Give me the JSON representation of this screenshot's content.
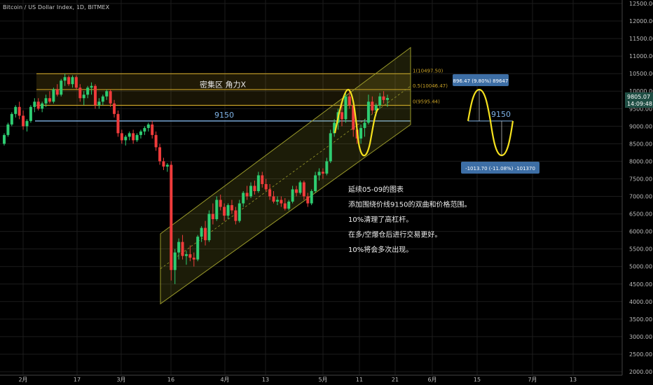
{
  "header": {
    "symbol": "Bitcoin / US Dollar Index, 1D, BITMEX"
  },
  "price_badge": {
    "price": "9805.07",
    "countdown": "14:09:48"
  },
  "zone": {
    "label": "密集区 角力X",
    "fib_top": "1(10497.50)",
    "fib_mid": "0.5(10046.47)",
    "fib_low": "0(9595.44)"
  },
  "support_label": "9150",
  "projection": {
    "label": "9150",
    "up_box": "896.47 (9.80%) 89647",
    "down_box": "-1013.70 (-11.08%) -101370"
  },
  "notes": [
    "延续05-09的图表",
    "添加围绕价线9150的双曲和价格范围。",
    "10%清理了高杠杆。",
    "在多/空爆仓后进行交易更好。",
    "10%将会多次出现。"
  ],
  "colors": {
    "up": "#26a69a",
    "up_bright": "#2ecc71",
    "down": "#ef3b3b",
    "zone": "#c9a227",
    "channel": "#9a9a2a",
    "support": "#7fb3e6",
    "wave": "#f5e11e",
    "box": "#3d6ea5",
    "grid": "#1c1c1c"
  },
  "chart_data": {
    "type": "candlestick",
    "y_axis": {
      "ylim": [
        1900,
        12600
      ],
      "ticks": [
        "12500.00",
        "12000.00",
        "11500.00",
        "11000.00",
        "10500.00",
        "10000.00",
        "9500.00",
        "9000.00",
        "8500.00",
        "8000.00",
        "7500.00",
        "7000.00",
        "6500.00",
        "6000.00",
        "5500.00",
        "5000.00",
        "4500.00",
        "4000.00",
        "3500.00",
        "3000.00",
        "2500.00",
        "2000.00"
      ]
    },
    "x_axis": {
      "ticks": [
        "2月",
        "17",
        "3月",
        "16",
        "4月",
        "13",
        "5月",
        "11",
        "21",
        "6月",
        "15",
        "7月",
        "13"
      ]
    },
    "levels": [
      {
        "name": "fib_1",
        "value": 10497.5
      },
      {
        "name": "fib_0.5",
        "value": 10046.47
      },
      {
        "name": "fib_0",
        "value": 9595.44
      },
      {
        "name": "support",
        "value": 9150
      }
    ],
    "ohlc": [
      [
        8500,
        8800,
        8450,
        8750
      ],
      [
        8750,
        9100,
        8700,
        9050
      ],
      [
        9050,
        9400,
        9000,
        9350
      ],
      [
        9350,
        9600,
        9250,
        9550
      ],
      [
        9550,
        9700,
        9200,
        9300
      ],
      [
        9300,
        9450,
        8900,
        9000
      ],
      [
        9000,
        9200,
        8850,
        9150
      ],
      [
        9150,
        9600,
        9100,
        9550
      ],
      [
        9550,
        9800,
        9400,
        9700
      ],
      [
        9700,
        9800,
        9450,
        9500
      ],
      [
        9500,
        9700,
        9400,
        9650
      ],
      [
        9650,
        9900,
        9550,
        9800
      ],
      [
        9800,
        10000,
        9650,
        9700
      ],
      [
        9700,
        10100,
        9650,
        10050
      ],
      [
        10050,
        10200,
        9850,
        9900
      ],
      [
        9900,
        10350,
        9850,
        10300
      ],
      [
        10300,
        10500,
        10150,
        10400
      ],
      [
        10400,
        10450,
        10150,
        10200
      ],
      [
        10200,
        10450,
        10100,
        10400
      ],
      [
        10400,
        10450,
        10050,
        10100
      ],
      [
        10100,
        10200,
        9700,
        9800
      ],
      [
        9800,
        10000,
        9600,
        9900
      ],
      [
        9900,
        10150,
        9800,
        10100
      ],
      [
        10100,
        10250,
        9900,
        10150
      ],
      [
        10150,
        10200,
        9500,
        9600
      ],
      [
        9600,
        9800,
        9500,
        9700
      ],
      [
        9700,
        9900,
        9600,
        9850
      ],
      [
        9850,
        10050,
        9750,
        10000
      ],
      [
        10000,
        10050,
        9550,
        9650
      ],
      [
        9650,
        9750,
        9250,
        9350
      ],
      [
        9350,
        9450,
        8700,
        8800
      ],
      [
        8800,
        8900,
        8500,
        8600
      ],
      [
        8600,
        8750,
        8450,
        8700
      ],
      [
        8700,
        8850,
        8600,
        8800
      ],
      [
        8800,
        8900,
        8500,
        8600
      ],
      [
        8600,
        8800,
        8550,
        8750
      ],
      [
        8750,
        8900,
        8650,
        8850
      ],
      [
        8850,
        9000,
        8750,
        8950
      ],
      [
        8950,
        9100,
        8850,
        9050
      ],
      [
        9050,
        9150,
        8650,
        8750
      ],
      [
        8750,
        8850,
        8300,
        8400
      ],
      [
        8400,
        8500,
        7900,
        8000
      ],
      [
        8000,
        8100,
        7750,
        7850
      ],
      [
        7850,
        7950,
        7700,
        7900
      ],
      [
        7900,
        8000,
        4600,
        4900
      ],
      [
        4900,
        5500,
        4500,
        5400
      ],
      [
        5400,
        5800,
        5200,
        5700
      ],
      [
        5700,
        5900,
        5200,
        5300
      ],
      [
        5300,
        5450,
        5050,
        5350
      ],
      [
        5350,
        5600,
        5150,
        5250
      ],
      [
        5250,
        5400,
        5000,
        5200
      ],
      [
        5200,
        5900,
        5150,
        5850
      ],
      [
        5850,
        6150,
        5700,
        6100
      ],
      [
        6100,
        6300,
        5600,
        5750
      ],
      [
        5750,
        6600,
        5700,
        6500
      ],
      [
        6500,
        6800,
        6200,
        6350
      ],
      [
        6350,
        7000,
        6300,
        6900
      ],
      [
        6900,
        7050,
        6600,
        6700
      ],
      [
        6700,
        6800,
        6300,
        6450
      ],
      [
        6450,
        6800,
        6350,
        6750
      ],
      [
        6750,
        6900,
        6500,
        6600
      ],
      [
        6600,
        6700,
        6200,
        6300
      ],
      [
        6300,
        6900,
        6250,
        6800
      ],
      [
        6800,
        7150,
        6700,
        7100
      ],
      [
        7100,
        7300,
        6900,
        7000
      ],
      [
        7000,
        7400,
        6950,
        7300
      ],
      [
        7300,
        7450,
        7050,
        7150
      ],
      [
        7150,
        7700,
        7100,
        7600
      ],
      [
        7600,
        7700,
        7250,
        7350
      ],
      [
        7350,
        7500,
        7150,
        7200
      ],
      [
        7200,
        7350,
        6900,
        7000
      ],
      [
        7000,
        7150,
        6800,
        6850
      ],
      [
        6850,
        7000,
        6750,
        6900
      ],
      [
        6900,
        7000,
        6700,
        6800
      ],
      [
        6800,
        6950,
        6600,
        6650
      ],
      [
        6650,
        6900,
        6600,
        6850
      ],
      [
        6850,
        7300,
        6800,
        7200
      ],
      [
        7200,
        7300,
        7000,
        7100
      ],
      [
        7100,
        7450,
        7050,
        7400
      ],
      [
        7400,
        7450,
        6900,
        7000
      ],
      [
        7000,
        7100,
        6700,
        6800
      ],
      [
        6800,
        7200,
        6750,
        7150
      ],
      [
        7150,
        7700,
        7100,
        7600
      ],
      [
        7600,
        7800,
        7450,
        7700
      ],
      [
        7700,
        7800,
        7500,
        7650
      ],
      [
        7650,
        8100,
        7600,
        8000
      ],
      [
        8000,
        8900,
        7950,
        8800
      ],
      [
        8800,
        9200,
        8700,
        9100
      ],
      [
        9100,
        9500,
        8900,
        9400
      ],
      [
        9400,
        9600,
        9000,
        9200
      ],
      [
        9200,
        9950,
        9100,
        9850
      ],
      [
        9850,
        10000,
        9500,
        9600
      ],
      [
        9600,
        9700,
        8700,
        8900
      ],
      [
        8900,
        9100,
        8500,
        8650
      ],
      [
        8650,
        9050,
        8500,
        8950
      ],
      [
        8950,
        9200,
        8700,
        9100
      ],
      [
        9100,
        9900,
        9050,
        9700
      ],
      [
        9700,
        9850,
        9350,
        9450
      ],
      [
        9450,
        9650,
        9300,
        9600
      ],
      [
        9600,
        9950,
        9500,
        9850
      ],
      [
        9850,
        10000,
        9650,
        9750
      ],
      [
        9750,
        9900,
        9550,
        9805
      ]
    ]
  }
}
